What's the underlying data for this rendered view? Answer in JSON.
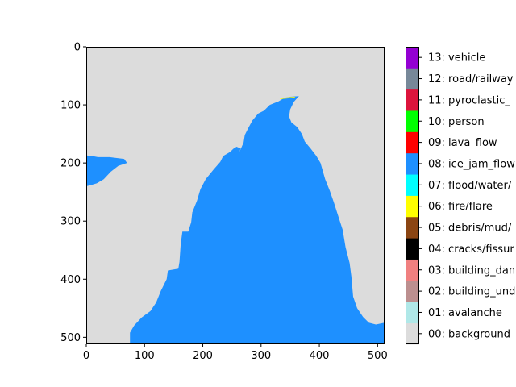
{
  "chart_data": {
    "type": "heatmap",
    "title": "",
    "xlabel": "",
    "ylabel": "",
    "xlim": [
      0,
      512
    ],
    "ylim": [
      512,
      0
    ],
    "x_ticks": [
      0,
      100,
      200,
      300,
      400,
      500
    ],
    "y_ticks": [
      0,
      100,
      200,
      300,
      400,
      500
    ],
    "grid": false,
    "legend": {
      "type": "colorbar",
      "placement": "right",
      "entries": [
        {
          "label": "00: background",
          "color": "#dcdcdc"
        },
        {
          "label": "01: avalanche",
          "color": "#b0e8e8"
        },
        {
          "label": "02: building_und",
          "color": "#bc8f8f"
        },
        {
          "label": "03: building_dan",
          "color": "#f08080"
        },
        {
          "label": "04: cracks/fissur",
          "color": "#000000"
        },
        {
          "label": "05: debris/mud/",
          "color": "#8b4513"
        },
        {
          "label": "06: fire/flare",
          "color": "#ffff00"
        },
        {
          "label": "07: flood/water/",
          "color": "#00ffff"
        },
        {
          "label": "08: ice_jam_flow",
          "color": "#1e90ff"
        },
        {
          "label": "09: lava_flow",
          "color": "#ff0000"
        },
        {
          "label": "10: person",
          "color": "#00ff00"
        },
        {
          "label": "11: pyroclastic_",
          "color": "#dc143c"
        },
        {
          "label": "12: road/railway",
          "color": "#778899"
        },
        {
          "label": "13: vehicle",
          "color": "#9400d3"
        }
      ]
    },
    "regions": [
      {
        "class": "08: ice_jam_flow",
        "color": "#1e90ff",
        "polygon": [
          [
            75,
            512
          ],
          [
            75,
            492
          ],
          [
            82,
            480
          ],
          [
            95,
            466
          ],
          [
            110,
            455
          ],
          [
            120,
            440
          ],
          [
            128,
            420
          ],
          [
            138,
            400
          ],
          [
            140,
            385
          ],
          [
            158,
            382
          ],
          [
            160,
            370
          ],
          [
            162,
            340
          ],
          [
            165,
            318
          ],
          [
            175,
            318
          ],
          [
            180,
            302
          ],
          [
            182,
            285
          ],
          [
            190,
            265
          ],
          [
            196,
            245
          ],
          [
            205,
            228
          ],
          [
            218,
            212
          ],
          [
            230,
            198
          ],
          [
            235,
            188
          ],
          [
            245,
            182
          ],
          [
            250,
            178
          ],
          [
            252,
            176
          ],
          [
            258,
            172
          ],
          [
            265,
            175
          ],
          [
            262,
            183
          ],
          [
            270,
            165
          ],
          [
            272,
            152
          ],
          [
            278,
            140
          ],
          [
            285,
            127
          ],
          [
            295,
            115
          ],
          [
            305,
            110
          ],
          [
            315,
            100
          ],
          [
            330,
            94
          ],
          [
            340,
            88
          ],
          [
            350,
            86
          ],
          [
            365,
            85
          ],
          [
            356,
            95
          ],
          [
            350,
            108
          ],
          [
            348,
            120
          ],
          [
            352,
            130
          ],
          [
            362,
            138
          ],
          [
            370,
            150
          ],
          [
            375,
            163
          ],
          [
            385,
            175
          ],
          [
            395,
            188
          ],
          [
            402,
            200
          ],
          [
            410,
            228
          ],
          [
            418,
            248
          ],
          [
            425,
            268
          ],
          [
            432,
            290
          ],
          [
            440,
            315
          ],
          [
            445,
            345
          ],
          [
            452,
            372
          ],
          [
            455,
            395
          ],
          [
            458,
            430
          ],
          [
            465,
            450
          ],
          [
            475,
            465
          ],
          [
            485,
            475
          ],
          [
            497,
            478
          ],
          [
            512,
            475
          ],
          [
            512,
            512
          ]
        ]
      },
      {
        "class": "08: ice_jam_flow",
        "color": "#1e90ff",
        "polygon": [
          [
            0,
            187
          ],
          [
            10,
            188
          ],
          [
            20,
            190
          ],
          [
            40,
            190
          ],
          [
            65,
            193
          ],
          [
            70,
            200
          ],
          [
            55,
            205
          ],
          [
            42,
            215
          ],
          [
            30,
            228
          ],
          [
            18,
            235
          ],
          [
            8,
            238
          ],
          [
            0,
            240
          ]
        ]
      },
      {
        "class": "08: ice_jam_flow",
        "color": "#1e90ff",
        "polygon": [
          [
            240,
            195
          ],
          [
            243,
            188
          ],
          [
            250,
            184
          ],
          [
            256,
            182
          ],
          [
            248,
            190
          ],
          [
            242,
            197
          ]
        ]
      },
      {
        "class": "06: fire/flare",
        "color": "#ffff00",
        "polygon": [
          [
            333,
            88
          ],
          [
            345,
            87
          ],
          [
            358,
            86
          ],
          [
            358,
            88
          ],
          [
            345,
            89
          ],
          [
            333,
            90
          ]
        ]
      }
    ]
  }
}
